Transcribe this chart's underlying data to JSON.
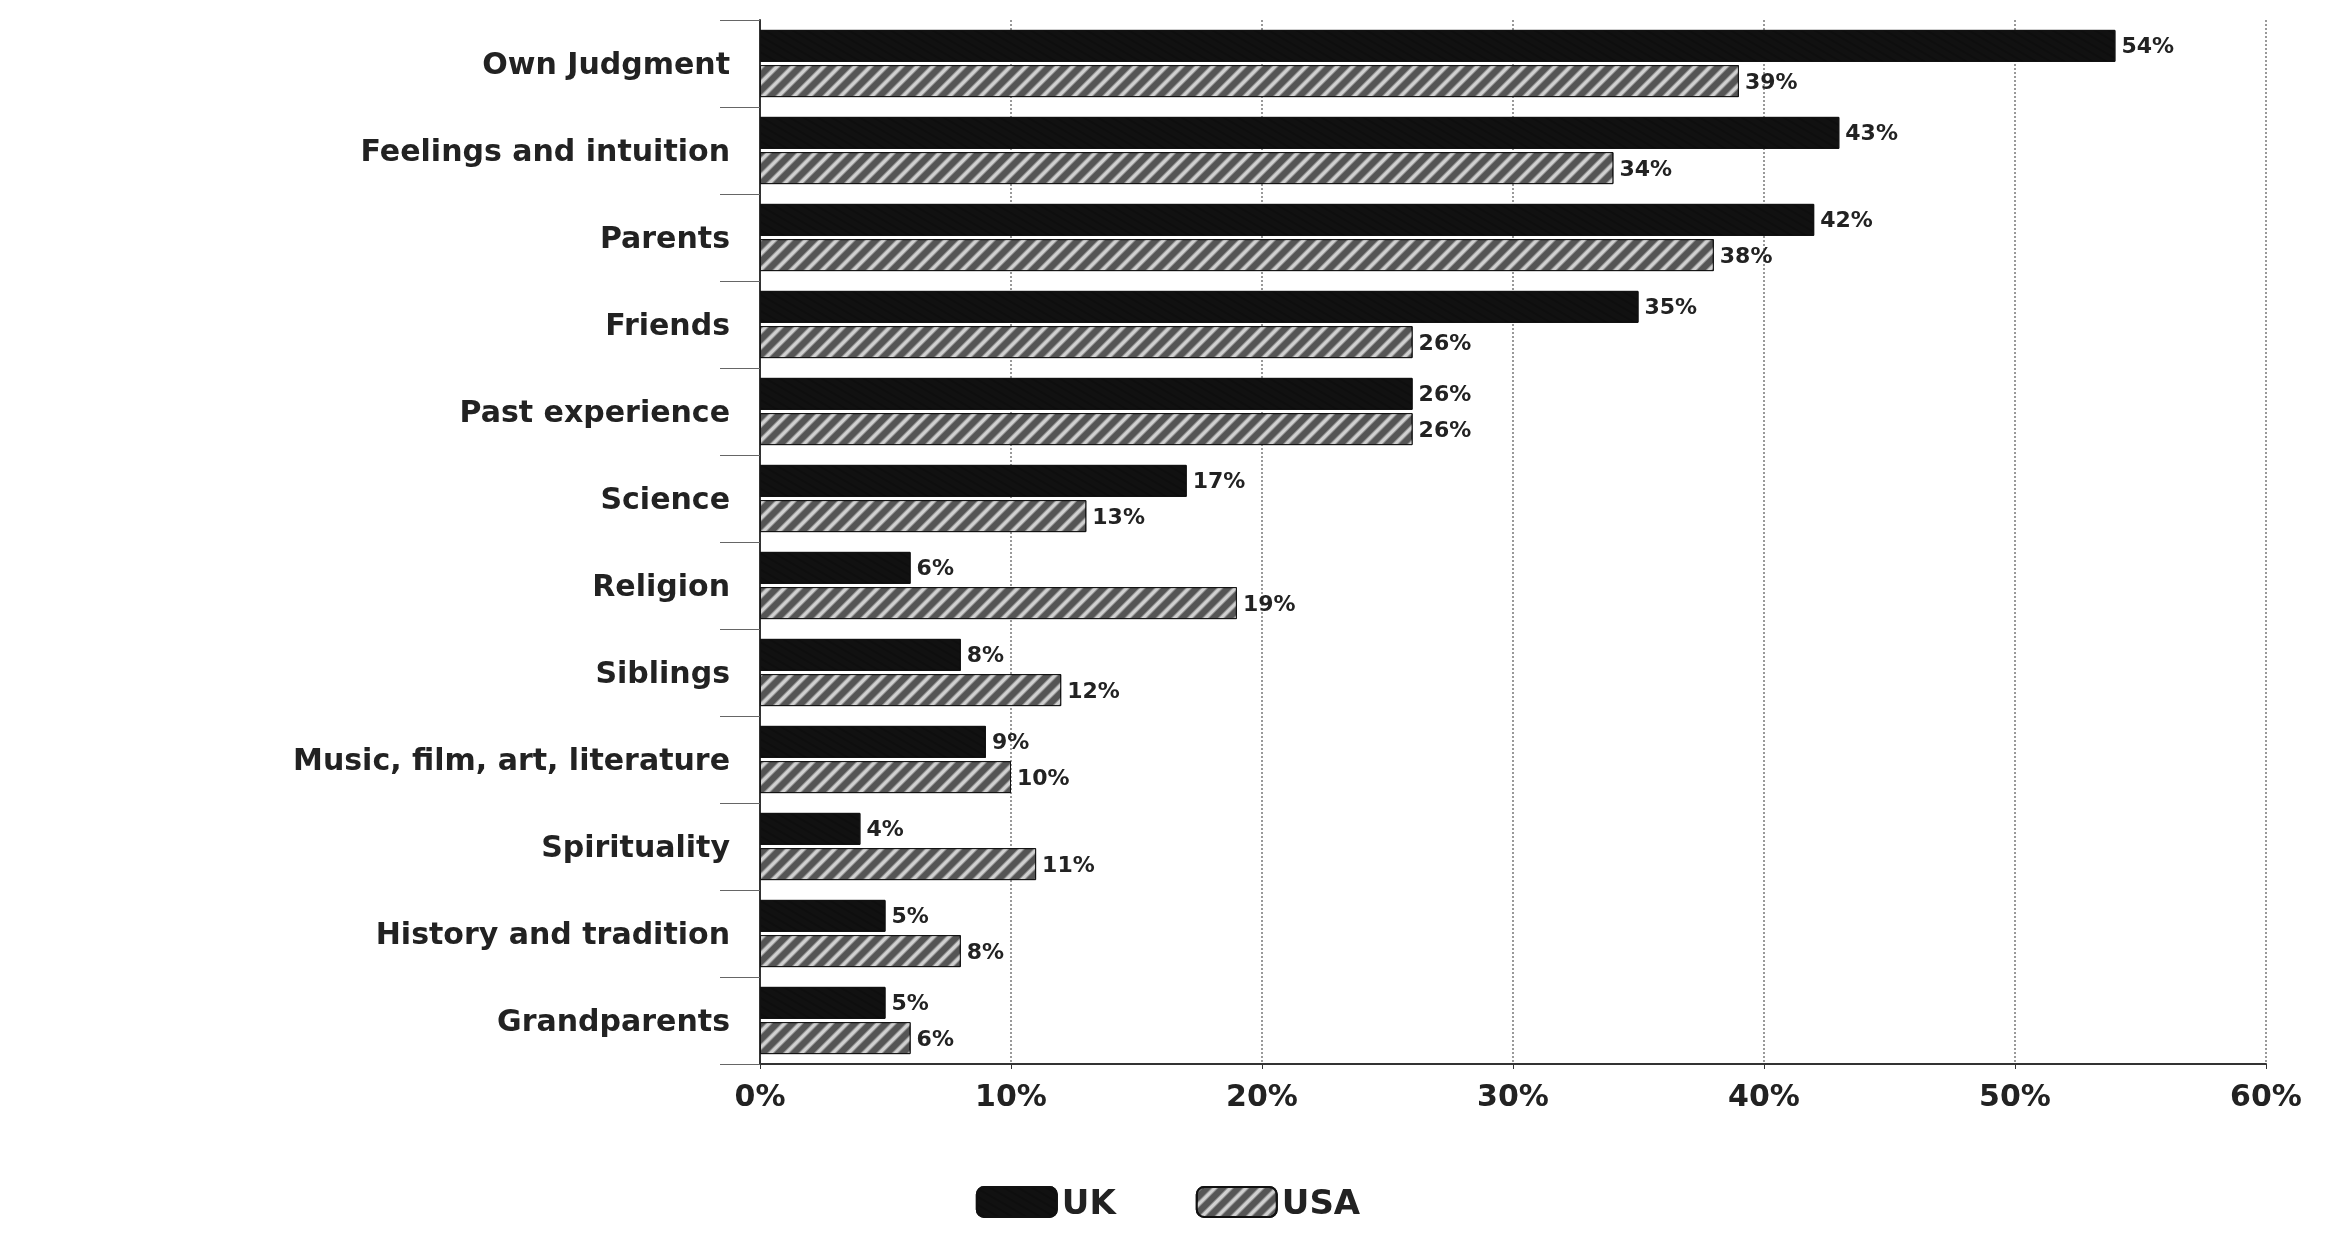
{
  "chart_data": {
    "type": "bar",
    "orientation": "horizontal",
    "categories": [
      "Own Judgment",
      "Feelings and intuition",
      "Parents",
      "Friends",
      "Past experience",
      "Science",
      "Religion",
      "Siblings",
      "Music, film, art, literature",
      "Spirituality",
      "History and tradition",
      "Grandparents"
    ],
    "series": [
      {
        "name": "UK",
        "color": "#111111",
        "values": [
          54,
          43,
          42,
          35,
          26,
          17,
          6,
          8,
          9,
          4,
          5,
          5
        ],
        "value_labels": [
          "54%",
          "43%",
          "42%",
          "35%",
          "26%",
          "17%",
          "6%",
          "8%",
          "9%",
          "4%",
          "5%",
          "5%"
        ]
      },
      {
        "name": "USA",
        "color": "#555555",
        "values": [
          39,
          34,
          38,
          26,
          26,
          13,
          19,
          12,
          10,
          11,
          8,
          6
        ],
        "value_labels": [
          "39%",
          "34%",
          "38%",
          "26%",
          "26%",
          "13%",
          "19%",
          "12%",
          "10%",
          "11%",
          "8%",
          "6%"
        ]
      }
    ],
    "xlim": [
      0,
      60
    ],
    "xticks": [
      {
        "value": 0,
        "label": "0%"
      },
      {
        "value": 10,
        "label": "10%"
      },
      {
        "value": 20,
        "label": "20%"
      },
      {
        "value": 30,
        "label": "30%"
      },
      {
        "value": 40,
        "label": "40%"
      },
      {
        "value": 50,
        "label": "50%"
      },
      {
        "value": 60,
        "label": "60%"
      }
    ],
    "grid": "x",
    "legend": "bottom"
  }
}
